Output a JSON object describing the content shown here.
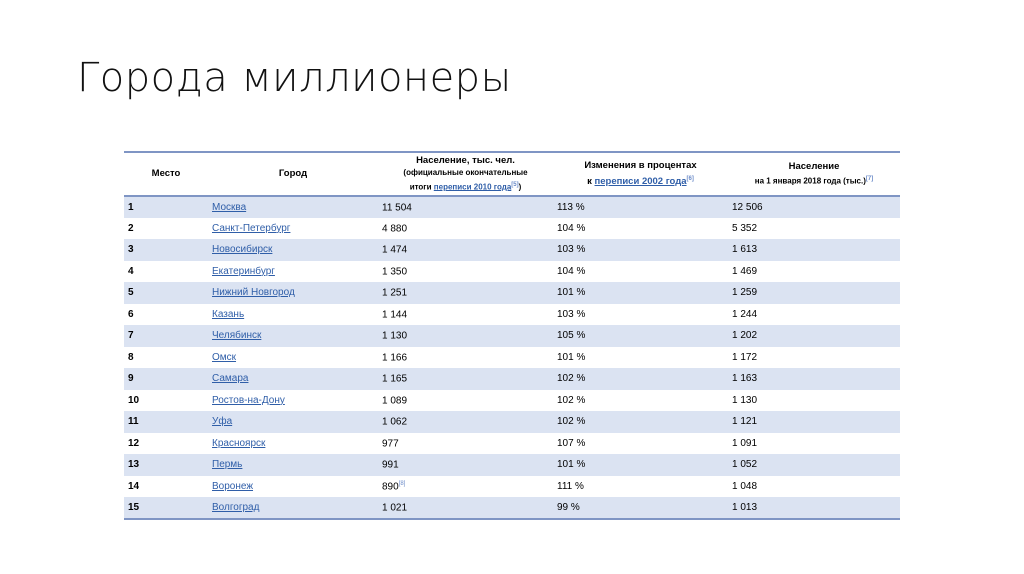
{
  "slide": {
    "title": "Города миллионеры"
  },
  "table": {
    "headers": {
      "rank": "Место",
      "city": "Город",
      "pop2010": {
        "line1": "Население, тыс. чел.",
        "line2": "(официальные окончательные",
        "line3_prefix": "итоги ",
        "line3_link": "переписи 2010 года",
        "line3_sup": "[5]",
        "line3_suffix": ")"
      },
      "change": {
        "line1": "Изменения в процентах",
        "line2_prefix": "к ",
        "line2_link": "переписи 2002 года",
        "line2_sup": "[6]"
      },
      "pop2018": {
        "line1": "Население",
        "line2": "на 1 января 2018 года (тыс.)",
        "line2_sup": "[7]"
      }
    },
    "rows": [
      {
        "rank": "1",
        "city": "Москва",
        "pop2010": "11 504",
        "pop2010_sup": "",
        "change": "113 %",
        "pop2018": "12 506"
      },
      {
        "rank": "2",
        "city": "Санкт-Петербург",
        "pop2010": "4 880",
        "pop2010_sup": "",
        "change": "104 %",
        "pop2018": "5 352"
      },
      {
        "rank": "3",
        "city": "Новосибирск",
        "pop2010": "1 474",
        "pop2010_sup": "",
        "change": "103 %",
        "pop2018": "1 613"
      },
      {
        "rank": "4",
        "city": "Екатеринбург",
        "pop2010": "1 350",
        "pop2010_sup": "",
        "change": "104 %",
        "pop2018": "1 469"
      },
      {
        "rank": "5",
        "city": "Нижний Новгород",
        "pop2010": "1 251",
        "pop2010_sup": "",
        "change": "101 %",
        "pop2018": "1 259"
      },
      {
        "rank": "6",
        "city": "Казань",
        "pop2010": "1 144",
        "pop2010_sup": "",
        "change": "103 %",
        "pop2018": "1 244"
      },
      {
        "rank": "7",
        "city": "Челябинск",
        "pop2010": "1 130",
        "pop2010_sup": "",
        "change": "105 %",
        "pop2018": "1 202"
      },
      {
        "rank": "8",
        "city": "Омск",
        "pop2010": "1 166",
        "pop2010_sup": "",
        "change": "101 %",
        "pop2018": "1 172"
      },
      {
        "rank": "9",
        "city": "Самара",
        "pop2010": "1 165",
        "pop2010_sup": "",
        "change": "102 %",
        "pop2018": "1 163"
      },
      {
        "rank": "10",
        "city": "Ростов-на-Дону",
        "pop2010": "1 089",
        "pop2010_sup": "",
        "change": "102 %",
        "pop2018": "1 130"
      },
      {
        "rank": "11",
        "city": "Уфа",
        "pop2010": "1 062",
        "pop2010_sup": "",
        "change": "102 %",
        "pop2018": "1 121"
      },
      {
        "rank": "12",
        "city": "Красноярск",
        "pop2010": "977",
        "pop2010_sup": "",
        "change": "107 %",
        "pop2018": "1 091"
      },
      {
        "rank": "13",
        "city": "Пермь",
        "pop2010": "991",
        "pop2010_sup": "",
        "change": "101 %",
        "pop2018": "1 052"
      },
      {
        "rank": "14",
        "city": "Воронеж",
        "pop2010": "890",
        "pop2010_sup": "[8]",
        "change": "111 %",
        "pop2018": "1 048"
      },
      {
        "rank": "15",
        "city": "Волгоград",
        "pop2010": "1 021",
        "pop2010_sup": "",
        "change": "99 %",
        "pop2018": "1 013"
      }
    ]
  },
  "colors": {
    "row_stripe": "#dbe3f2",
    "border": "#7f95c4",
    "link": "#2f5ea8"
  }
}
